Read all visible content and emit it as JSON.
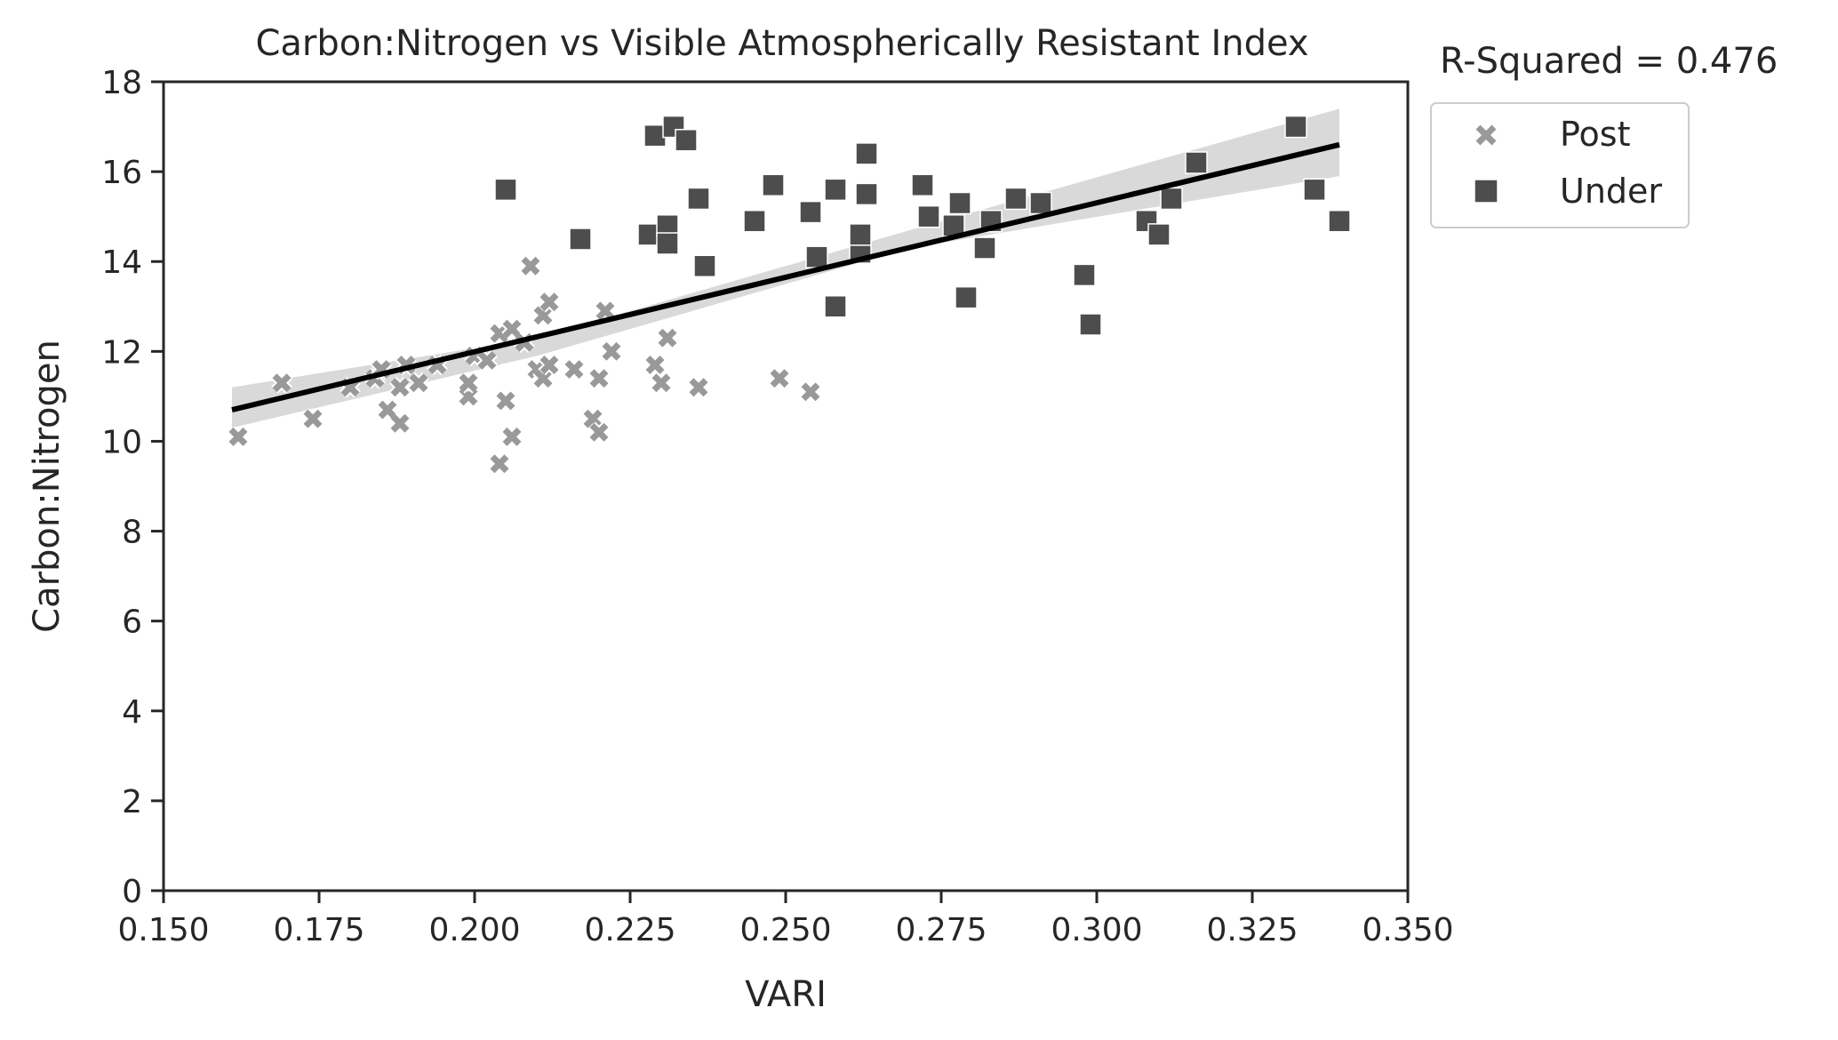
{
  "chart_data": {
    "type": "scatter",
    "title": "Carbon:Nitrogen vs Visible Atmospherically Resistant Index",
    "annotation": "R-Squared = 0.476",
    "xlabel": "VARI",
    "ylabel": "Carbon:Nitrogen",
    "xlim": [
      0.15,
      0.35
    ],
    "ylim": [
      0,
      18
    ],
    "xticks": [
      "0.150",
      "0.175",
      "0.200",
      "0.225",
      "0.250",
      "0.275",
      "0.300",
      "0.325",
      "0.350"
    ],
    "yticks": [
      "0",
      "2",
      "4",
      "6",
      "8",
      "10",
      "12",
      "14",
      "16",
      "18"
    ],
    "grid": false,
    "legend_position": "outside-right",
    "colors": {
      "post": "#999999",
      "under": "#4d4d4d",
      "fit_line": "#000000",
      "ci_band": "#d9d9d9"
    },
    "series": [
      {
        "name": "Post",
        "marker": "x",
        "points": [
          [
            0.162,
            10.1
          ],
          [
            0.169,
            11.3
          ],
          [
            0.174,
            10.5
          ],
          [
            0.18,
            11.2
          ],
          [
            0.184,
            11.4
          ],
          [
            0.185,
            11.6
          ],
          [
            0.186,
            10.7
          ],
          [
            0.188,
            10.4
          ],
          [
            0.188,
            11.2
          ],
          [
            0.189,
            11.7
          ],
          [
            0.191,
            11.3
          ],
          [
            0.194,
            11.7
          ],
          [
            0.199,
            11.0
          ],
          [
            0.199,
            11.3
          ],
          [
            0.2,
            11.9
          ],
          [
            0.202,
            11.8
          ],
          [
            0.204,
            9.5
          ],
          [
            0.204,
            12.4
          ],
          [
            0.205,
            10.9
          ],
          [
            0.206,
            12.5
          ],
          [
            0.206,
            10.1
          ],
          [
            0.208,
            12.2
          ],
          [
            0.209,
            13.9
          ],
          [
            0.21,
            11.6
          ],
          [
            0.211,
            11.4
          ],
          [
            0.211,
            12.8
          ],
          [
            0.212,
            13.1
          ],
          [
            0.212,
            11.7
          ],
          [
            0.216,
            11.6
          ],
          [
            0.219,
            10.5
          ],
          [
            0.22,
            10.2
          ],
          [
            0.22,
            11.4
          ],
          [
            0.221,
            12.9
          ],
          [
            0.222,
            12.0
          ],
          [
            0.229,
            11.7
          ],
          [
            0.23,
            11.3
          ],
          [
            0.231,
            12.3
          ],
          [
            0.236,
            11.2
          ],
          [
            0.249,
            11.4
          ],
          [
            0.254,
            11.1
          ]
        ]
      },
      {
        "name": "Under",
        "marker": "square",
        "points": [
          [
            0.205,
            15.6
          ],
          [
            0.217,
            14.5
          ],
          [
            0.228,
            14.6
          ],
          [
            0.229,
            16.8
          ],
          [
            0.231,
            14.8
          ],
          [
            0.231,
            14.4
          ],
          [
            0.232,
            17.0
          ],
          [
            0.234,
            16.7
          ],
          [
            0.236,
            15.4
          ],
          [
            0.237,
            13.9
          ],
          [
            0.245,
            14.9
          ],
          [
            0.248,
            15.7
          ],
          [
            0.254,
            15.1
          ],
          [
            0.255,
            14.1
          ],
          [
            0.258,
            13.0
          ],
          [
            0.258,
            15.6
          ],
          [
            0.262,
            14.2
          ],
          [
            0.262,
            14.6
          ],
          [
            0.263,
            15.5
          ],
          [
            0.263,
            16.4
          ],
          [
            0.272,
            15.7
          ],
          [
            0.273,
            15.0
          ],
          [
            0.277,
            14.8
          ],
          [
            0.278,
            15.3
          ],
          [
            0.279,
            13.2
          ],
          [
            0.282,
            14.3
          ],
          [
            0.283,
            14.9
          ],
          [
            0.287,
            15.4
          ],
          [
            0.291,
            15.3
          ],
          [
            0.298,
            13.7
          ],
          [
            0.299,
            12.6
          ],
          [
            0.308,
            14.9
          ],
          [
            0.31,
            14.6
          ],
          [
            0.312,
            15.4
          ],
          [
            0.316,
            16.2
          ],
          [
            0.332,
            17.0
          ],
          [
            0.335,
            15.6
          ],
          [
            0.339,
            14.9
          ]
        ]
      }
    ],
    "regression": {
      "x": [
        0.161,
        0.339
      ],
      "y": [
        10.7,
        16.6
      ],
      "ci_lower": [
        10.3,
        15.9
      ],
      "ci_mid_lower": [
        11.9,
        14.3
      ],
      "ci_mid_upper": [
        12.3,
        14.7
      ],
      "ci_upper": [
        11.2,
        17.4
      ],
      "ci_mid_x": [
        0.21,
        0.27
      ]
    }
  }
}
